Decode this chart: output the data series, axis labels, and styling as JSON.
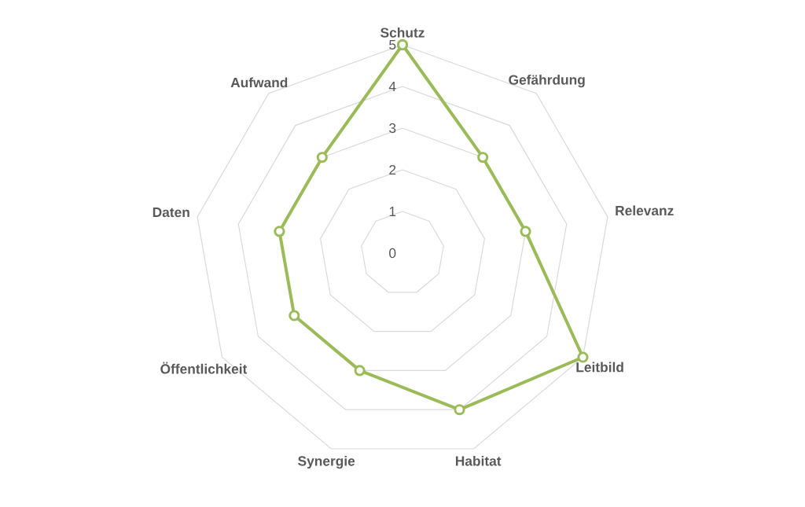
{
  "chart_data": {
    "type": "radar",
    "categories": [
      "Schutz",
      "Gefährdung",
      "Relevanz",
      "Leitbild",
      "Habitat",
      "Synergie",
      "Öffentlichkeit",
      "Daten",
      "Aufwand"
    ],
    "series": [
      {
        "color": "#9bbb59",
        "values": [
          5,
          3,
          3,
          5,
          4,
          3,
          3,
          3,
          3
        ]
      }
    ],
    "ylim": [
      0,
      5
    ],
    "yticks": [
      0,
      1,
      2,
      3,
      4,
      5
    ],
    "grid": true,
    "marker": "circle"
  }
}
